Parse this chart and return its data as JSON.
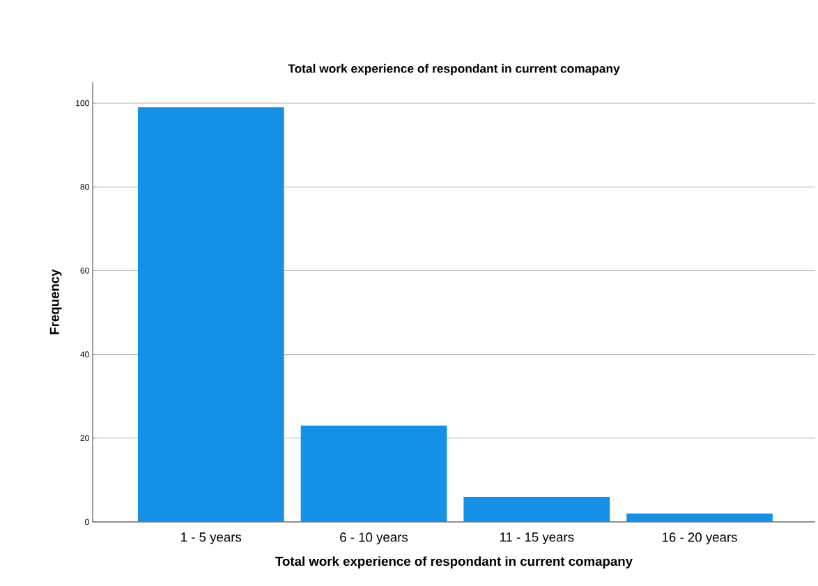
{
  "chart_data": {
    "type": "bar",
    "title": "Total work experience of respondant in current comapany",
    "xlabel": "Total work experience of respondant in current comapany",
    "ylabel": "Frequency",
    "categories": [
      "1 - 5 years",
      "6 - 10 years",
      "11 - 15 years",
      "16 - 20 years"
    ],
    "values": [
      99,
      23,
      6,
      2
    ],
    "color": "#1490e6",
    "ylim": [
      0,
      105
    ],
    "yticks": [
      0,
      20,
      40,
      60,
      80,
      100
    ],
    "grid": "y"
  }
}
